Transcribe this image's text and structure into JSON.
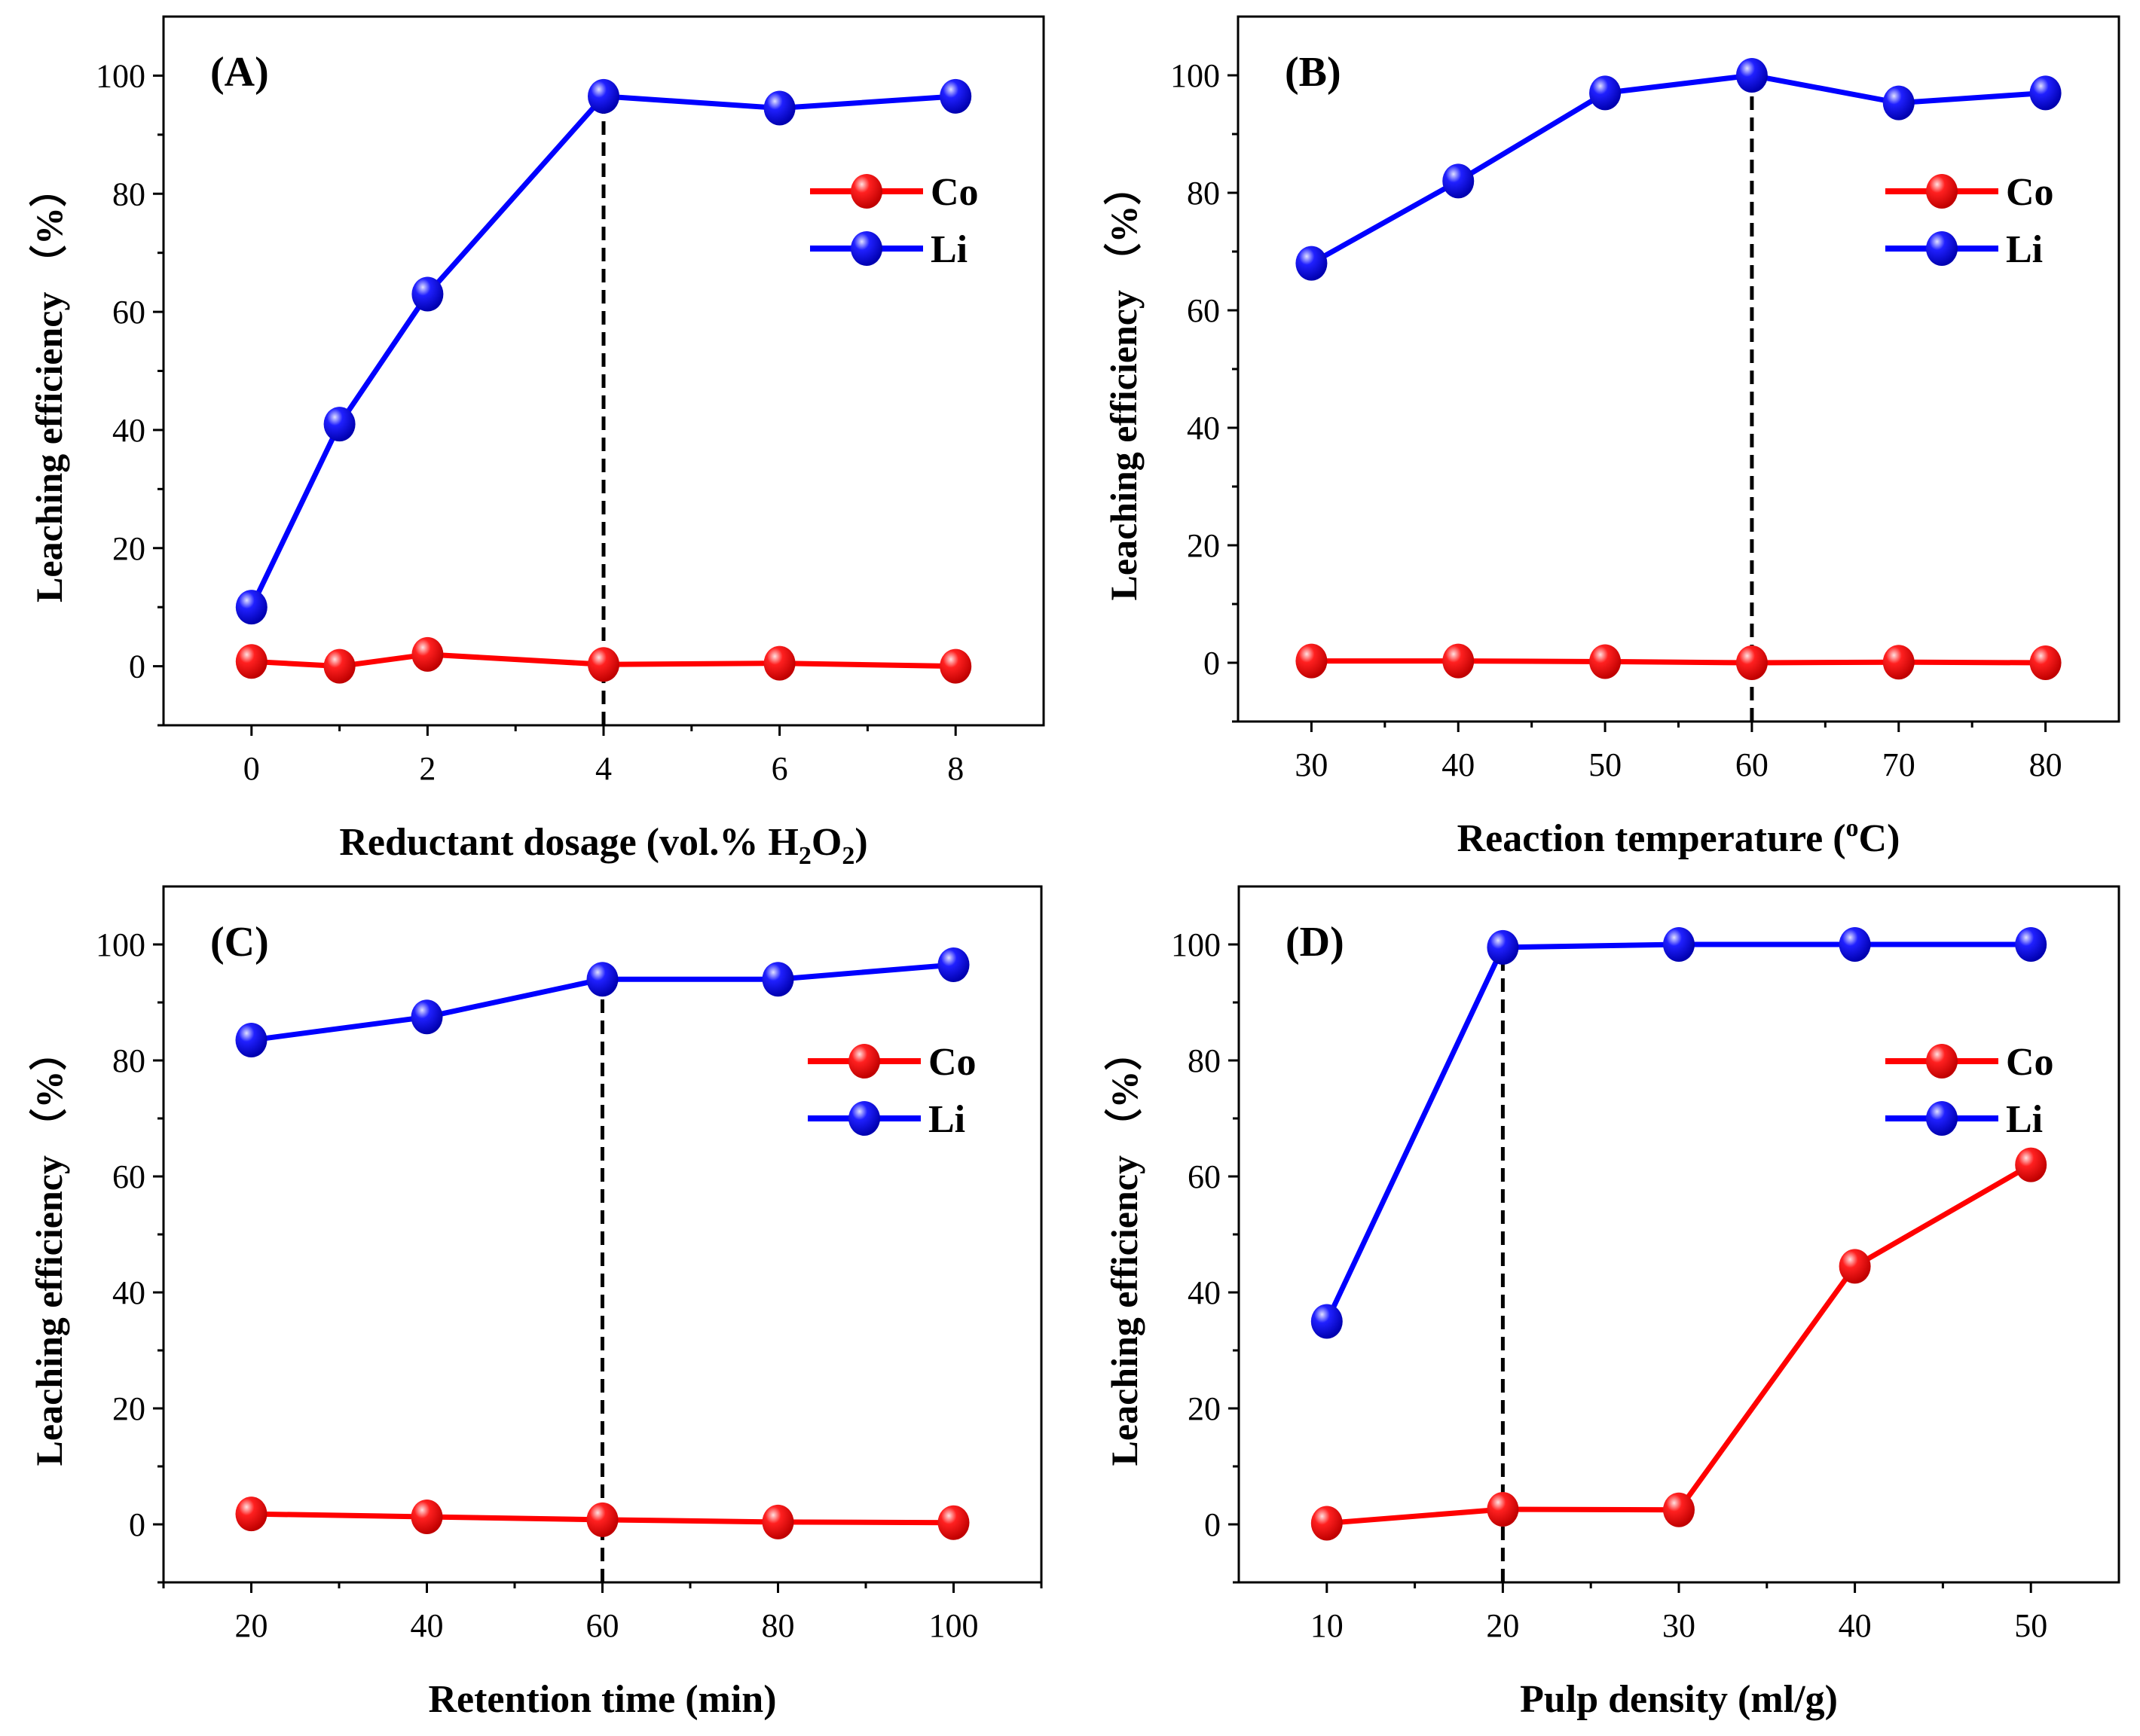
{
  "chart_data": [
    {
      "type": "line",
      "panel_label": "(A)",
      "xlabel": [
        {
          "t": "Reductant dosage (vol.% H"
        },
        {
          "t": "2",
          "sub": true
        },
        {
          "t": "O"
        },
        {
          "t": "2",
          "sub": true
        },
        {
          "t": ")"
        }
      ],
      "ylabel": "Leaching efficiency （%）",
      "xlim": [
        -1,
        9
      ],
      "ylim": [
        -10,
        110
      ],
      "xticks": [
        0,
        2,
        4,
        6,
        8
      ],
      "xminor": [
        1,
        3,
        5,
        7
      ],
      "yticks": [
        0,
        20,
        40,
        60,
        80,
        100
      ],
      "x": [
        0,
        1,
        2,
        4,
        6,
        8
      ],
      "series": [
        {
          "name": "Co",
          "color": "#ff0000",
          "values": [
            0.8,
            0,
            2,
            0.3,
            0.5,
            0
          ]
        },
        {
          "name": "Li",
          "color": "#0000ff",
          "values": [
            10,
            41,
            63,
            96.5,
            94.5,
            96.5
          ]
        }
      ],
      "dashed_line_x": 4,
      "legend": "upper-right",
      "grid": false
    },
    {
      "type": "line",
      "panel_label": "(B)",
      "xlabel": [
        {
          "t": "Reaction temperature ("
        },
        {
          "t": "o",
          "sup": true
        },
        {
          "t": "C)"
        }
      ],
      "ylabel": "Leaching efficiency （%）",
      "xlim": [
        25,
        85
      ],
      "ylim": [
        -10,
        110
      ],
      "xticks": [
        30,
        40,
        50,
        60,
        70,
        80
      ],
      "xminor": [
        35,
        45,
        55,
        65,
        75
      ],
      "yticks": [
        0,
        20,
        40,
        60,
        80,
        100
      ],
      "x": [
        30,
        40,
        50,
        60,
        70,
        80
      ],
      "series": [
        {
          "name": "Co",
          "color": "#ff0000",
          "values": [
            0.3,
            0.3,
            0.2,
            0,
            0.1,
            0
          ]
        },
        {
          "name": "Li",
          "color": "#0000ff",
          "values": [
            68,
            82,
            97,
            100,
            95.3,
            97
          ]
        }
      ],
      "dashed_line_x": 60,
      "legend": "upper-right",
      "grid": false
    },
    {
      "type": "line",
      "panel_label": "(C)",
      "xlabel": [
        {
          "t": "Retention time (min)"
        }
      ],
      "ylabel": "Leaching efficiency （%）",
      "xlim": [
        10,
        110
      ],
      "ylim": [
        -10,
        110
      ],
      "xticks": [
        20,
        40,
        60,
        80,
        100
      ],
      "xminor": [
        10,
        30,
        50,
        70,
        90,
        110
      ],
      "yticks": [
        0,
        20,
        40,
        60,
        80,
        100
      ],
      "x": [
        20,
        40,
        60,
        80,
        100
      ],
      "series": [
        {
          "name": "Co",
          "color": "#ff0000",
          "values": [
            1.8,
            1.3,
            0.8,
            0.4,
            0.3
          ]
        },
        {
          "name": "Li",
          "color": "#0000ff",
          "values": [
            83.5,
            87.5,
            94,
            94,
            96.5
          ]
        }
      ],
      "dashed_line_x": 60,
      "legend": "upper-right",
      "grid": false
    },
    {
      "type": "line",
      "panel_label": "(D)",
      "xlabel": [
        {
          "t": "Pulp density (ml/g)"
        }
      ],
      "ylabel": "Leaching efficiency （%）",
      "xlim": [
        5,
        55
      ],
      "ylim": [
        -10,
        110
      ],
      "xticks": [
        10,
        20,
        30,
        40,
        50
      ],
      "xminor": [
        15,
        25,
        35,
        45
      ],
      "yticks": [
        0,
        20,
        40,
        60,
        80,
        100
      ],
      "x": [
        10,
        20,
        30,
        40,
        50
      ],
      "series": [
        {
          "name": "Co",
          "color": "#ff0000",
          "values": [
            0.2,
            2.6,
            2.5,
            44.5,
            62
          ]
        },
        {
          "name": "Li",
          "color": "#0000ff",
          "values": [
            35,
            99.5,
            100,
            100,
            100
          ]
        }
      ],
      "dashed_line_x": 20,
      "legend": "upper-right",
      "grid": false
    }
  ]
}
